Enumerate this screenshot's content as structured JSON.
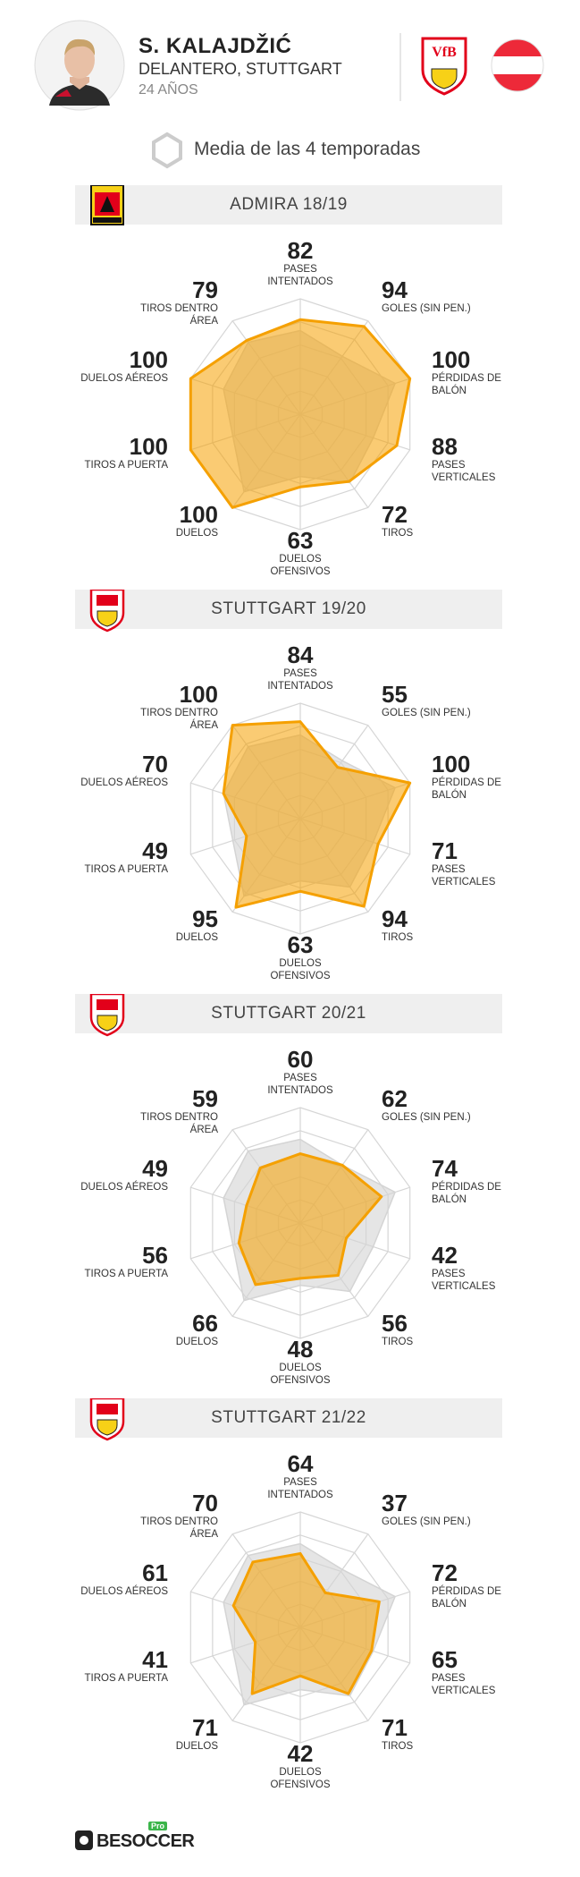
{
  "header": {
    "name": "S. KALAJDŽIĆ",
    "position": "DELANTERO, STUTTGART",
    "age": "24 AÑOS"
  },
  "legend": {
    "label": "Media de las 4 temporadas"
  },
  "chart_data": [
    {
      "type": "radar",
      "title": "ADMIRA 18/19",
      "club": "admira",
      "categories": [
        "PASES INTENTADOS",
        "GOLES (SIN PEN.)",
        "PÉRDIDAS DE BALÓN",
        "PASES VERTICALES",
        "TIROS",
        "DUELOS OFENSIVOS",
        "DUELOS",
        "TIROS A PUERTA",
        "DUELOS AÉREOS",
        "TIROS DENTRO ÁREA"
      ],
      "values": [
        82,
        94,
        100,
        88,
        72,
        63,
        100,
        100,
        100,
        79
      ],
      "color": "#f5a000",
      "average_values": [
        72.5,
        62,
        86.5,
        66.5,
        73.25,
        54,
        83,
        61.5,
        70,
        77
      ],
      "average_color": "#d4d4d4",
      "rlim": [
        0,
        100
      ]
    },
    {
      "type": "radar",
      "title": "STUTTGART 19/20",
      "club": "stuttgart",
      "categories": [
        "PASES INTENTADOS",
        "GOLES (SIN PEN.)",
        "PÉRDIDAS DE BALÓN",
        "PASES VERTICALES",
        "TIROS",
        "DUELOS OFENSIVOS",
        "DUELOS",
        "TIROS A PUERTA",
        "DUELOS AÉREOS",
        "TIROS DENTRO ÁREA"
      ],
      "values": [
        84,
        55,
        100,
        71,
        94,
        63,
        95,
        49,
        70,
        100
      ],
      "color": "#f5a000",
      "average_values": [
        72.5,
        62,
        86.5,
        66.5,
        73.25,
        54,
        83,
        61.5,
        70,
        77
      ],
      "average_color": "#d4d4d4",
      "rlim": [
        0,
        100
      ]
    },
    {
      "type": "radar",
      "title": "STUTTGART 20/21",
      "club": "stuttgart",
      "categories": [
        "PASES INTENTADOS",
        "GOLES (SIN PEN.)",
        "PÉRDIDAS DE BALÓN",
        "PASES VERTICALES",
        "TIROS",
        "DUELOS OFENSIVOS",
        "DUELOS",
        "TIROS A PUERTA",
        "DUELOS AÉREOS",
        "TIROS DENTRO ÁREA"
      ],
      "values": [
        60,
        62,
        74,
        42,
        56,
        48,
        66,
        56,
        49,
        59
      ],
      "color": "#f5a000",
      "average_values": [
        72.5,
        62,
        86.5,
        66.5,
        73.25,
        54,
        83,
        61.5,
        70,
        77
      ],
      "average_color": "#d4d4d4",
      "rlim": [
        0,
        100
      ]
    },
    {
      "type": "radar",
      "title": "STUTTGART 21/22",
      "club": "stuttgart",
      "categories": [
        "PASES INTENTADOS",
        "GOLES (SIN PEN.)",
        "PÉRDIDAS DE BALÓN",
        "PASES VERTICALES",
        "TIROS",
        "DUELOS OFENSIVOS",
        "DUELOS",
        "TIROS A PUERTA",
        "DUELOS AÉREOS",
        "TIROS DENTRO ÁREA"
      ],
      "values": [
        64,
        37,
        72,
        65,
        71,
        42,
        71,
        41,
        61,
        70
      ],
      "color": "#f5a000",
      "average_values": [
        72.5,
        62,
        86.5,
        66.5,
        73.25,
        54,
        83,
        61.5,
        70,
        77
      ],
      "average_color": "#d4d4d4",
      "rlim": [
        0,
        100
      ]
    }
  ],
  "footer": {
    "brand": "BESOCCER",
    "tier": "Pro"
  }
}
